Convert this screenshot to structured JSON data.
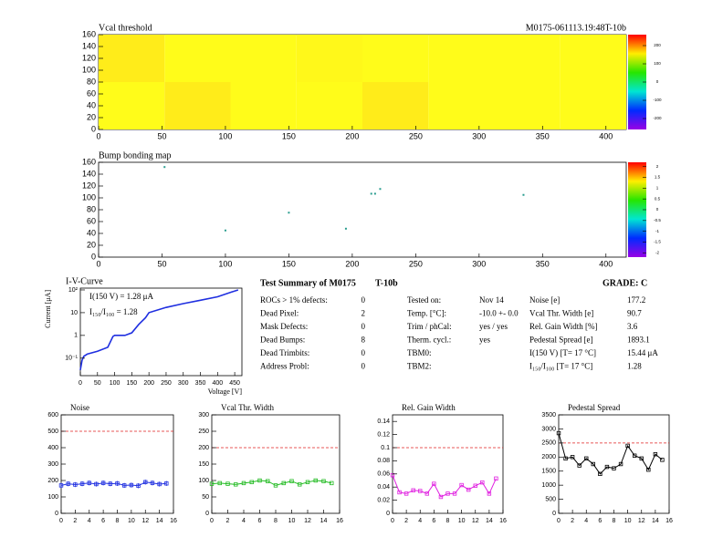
{
  "chart_data": [
    {
      "type": "heatmap",
      "title": "Vcal threshold",
      "label": "M0175-061113.19:48T-10b",
      "xlim": [
        0,
        416
      ],
      "xticks": [
        0,
        50,
        100,
        150,
        200,
        250,
        300,
        350,
        400
      ],
      "ylim": [
        0,
        160
      ],
      "yticks": [
        0,
        20,
        40,
        60,
        80,
        100,
        120,
        140,
        160
      ],
      "zlim": [
        -260,
        260
      ],
      "zticks": [
        200,
        100,
        0,
        -100,
        -200
      ],
      "z": [
        [
          150,
          158,
          150,
          150,
          158,
          150,
          150,
          150
        ],
        [
          158,
          150,
          150,
          152,
          150,
          150,
          150,
          150
        ]
      ]
    },
    {
      "type": "scatter",
      "title": "Bump bonding map",
      "color": "#2a9d8f",
      "xlim": [
        0,
        416
      ],
      "xticks": [
        0,
        50,
        100,
        150,
        200,
        250,
        300,
        350,
        400
      ],
      "ylim": [
        0,
        160
      ],
      "yticks": [
        0,
        20,
        40,
        60,
        80,
        100,
        120,
        140,
        160
      ],
      "zlim": [
        -2.2,
        2.2
      ],
      "zticks": [
        2,
        1.5,
        1,
        0.5,
        0,
        -0.5,
        -1,
        -1.5,
        -2
      ],
      "x": [
        52,
        100,
        150,
        195,
        215,
        218,
        222,
        335
      ],
      "y": [
        152,
        45,
        75,
        48,
        107,
        107,
        115,
        105
      ]
    },
    {
      "type": "line",
      "title": "I-V-Curve",
      "xlabel": "Voltage [V]",
      "ylabel": "Current [μA]",
      "color": "#1f2fe0",
      "log_y": true,
      "annotations": [
        "I(150 V) = 1.28 μA",
        "I₁₅₀/I₁₀₀ = 1.28"
      ],
      "xlim": [
        0,
        471
      ],
      "xticks": [
        0,
        50,
        100,
        150,
        200,
        250,
        300,
        350,
        400,
        450
      ],
      "ylim": [
        0.017,
        120
      ],
      "yticks": [
        {
          "value": 0.1,
          "label": "10⁻¹"
        },
        1,
        10,
        {
          "value": 100,
          "label": "10²"
        }
      ],
      "x": [
        0,
        5,
        10,
        20,
        50,
        80,
        95,
        100,
        130,
        150,
        170,
        190,
        200,
        250,
        300,
        350,
        400,
        440,
        460
      ],
      "values": [
        0.03,
        0.08,
        0.12,
        0.15,
        0.2,
        0.3,
        0.9,
        1.0,
        1.0,
        1.3,
        3,
        6,
        10,
        17,
        25,
        35,
        50,
        80,
        100
      ]
    },
    {
      "type": "line",
      "title": "Noise",
      "color": "#1f2fe0",
      "markers": true,
      "threshold": 500,
      "xlim": [
        0,
        16
      ],
      "xticks": [
        0,
        2,
        4,
        6,
        8,
        10,
        12,
        14,
        16
      ],
      "ylim": [
        0,
        600
      ],
      "yticks": [
        0,
        100,
        200,
        300,
        400,
        500,
        600
      ],
      "x": [
        0,
        1,
        2,
        3,
        4,
        5,
        6,
        7,
        8,
        9,
        10,
        11,
        12,
        13,
        14,
        15
      ],
      "values": [
        170,
        180,
        175,
        180,
        185,
        178,
        185,
        180,
        182,
        170,
        172,
        168,
        190,
        185,
        178,
        182
      ],
      "errors": [
        15,
        15,
        15,
        15,
        15,
        15,
        15,
        15,
        15,
        15,
        15,
        15,
        15,
        15,
        15,
        15
      ]
    },
    {
      "type": "line",
      "title": "Vcal Thr. Width",
      "color": "#22bb22",
      "markers": true,
      "threshold": 200,
      "xlim": [
        0,
        16
      ],
      "xticks": [
        0,
        2,
        4,
        6,
        8,
        10,
        12,
        14,
        16
      ],
      "ylim": [
        0,
        300
      ],
      "yticks": [
        0,
        50,
        100,
        150,
        200,
        250,
        300
      ],
      "x": [
        0,
        1,
        2,
        3,
        4,
        5,
        6,
        7,
        8,
        9,
        10,
        11,
        12,
        13,
        14,
        15
      ],
      "values": [
        90,
        92,
        90,
        88,
        92,
        95,
        100,
        98,
        85,
        92,
        98,
        88,
        95,
        100,
        98,
        92
      ]
    },
    {
      "type": "line",
      "title": "Rel. Gain Width",
      "color": "#e020e0",
      "markers": true,
      "threshold": 0.1,
      "xlim": [
        0,
        16
      ],
      "xticks": [
        0,
        2,
        4,
        6,
        8,
        10,
        12,
        14,
        16
      ],
      "ylim": [
        0,
        0.15
      ],
      "yticks": [
        0,
        0.02,
        0.04,
        0.06,
        0.08,
        0.1,
        0.12,
        0.14
      ],
      "x": [
        0,
        1,
        2,
        3,
        4,
        5,
        6,
        7,
        8,
        9,
        10,
        11,
        12,
        13,
        14,
        15
      ],
      "values": [
        0.058,
        0.032,
        0.03,
        0.035,
        0.034,
        0.03,
        0.045,
        0.025,
        0.03,
        0.03,
        0.043,
        0.036,
        0.042,
        0.047,
        0.03,
        0.053
      ]
    },
    {
      "type": "line",
      "title": "Pedestal Spread",
      "color": "#000000",
      "markers": true,
      "threshold": 2500,
      "xlim": [
        0,
        16
      ],
      "xticks": [
        0,
        2,
        4,
        6,
        8,
        10,
        12,
        14,
        16
      ],
      "ylim": [
        0,
        3500
      ],
      "yticks": [
        0,
        500,
        1000,
        1500,
        2000,
        2500,
        3000,
        3500
      ],
      "x": [
        0,
        1,
        2,
        3,
        4,
        5,
        6,
        7,
        8,
        9,
        10,
        11,
        12,
        13,
        14,
        15
      ],
      "values": [
        2850,
        1950,
        2000,
        1700,
        1950,
        1750,
        1400,
        1650,
        1600,
        1750,
        2400,
        2050,
        1950,
        1550,
        2100,
        1900
      ]
    }
  ],
  "summary": {
    "title": "Test Summary of M0175",
    "tag": "T-10b",
    "grade": "GRADE:  C",
    "defects": [
      {
        "label": "ROCs > 1% defects:",
        "value": 0
      },
      {
        "label": "Dead Pixel:",
        "value": 2
      },
      {
        "label": "Mask Defects:",
        "value": 0
      },
      {
        "label": "Dead Bumps:",
        "value": 8
      },
      {
        "label": "Dead Trimbits:",
        "value": 0
      },
      {
        "label": "Address Probl:",
        "value": 0
      }
    ],
    "conditions": [
      {
        "label": "Tested on:",
        "value": "Nov 14"
      },
      {
        "label": "Temp. [°C]:",
        "value": "-10.0 +- 0.0"
      },
      {
        "label": "Trim / phCal:",
        "value": "yes / yes"
      },
      {
        "label": "Therm. cycl.:",
        "value": "yes"
      },
      {
        "label": "TBM0:"
      },
      {
        "label": "TBM2:"
      }
    ],
    "results": [
      {
        "label": "Noise [e]",
        "value": 177.2
      },
      {
        "label": "Vcal Thr. Width [e]",
        "value": 90.7
      },
      {
        "label": "Rel. Gain Width [%]",
        "value": 3.6
      },
      {
        "label": "Pedestal Spread [e]",
        "value": 1893.1
      },
      {
        "label": "I(150 V) [T= 17 °C]",
        "value": "15.44 μA"
      },
      {
        "label": "I₁₅₀/I₁₀₀ [T= 17 °C]",
        "value": 1.28
      }
    ]
  }
}
